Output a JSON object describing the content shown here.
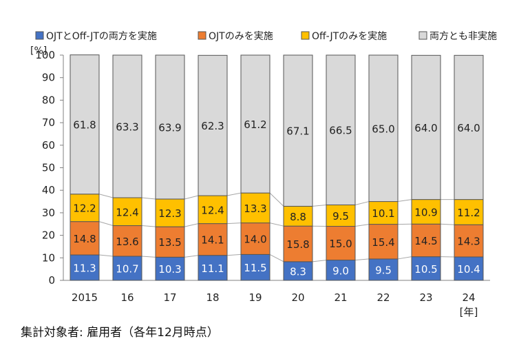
{
  "chart_data": {
    "type": "bar",
    "stacked": true,
    "categories": [
      "2015",
      "16",
      "17",
      "18",
      "19",
      "20",
      "21",
      "22",
      "23",
      "24"
    ],
    "series": [
      {
        "name": "OJTとOff-JTの両方を実施",
        "color": "#4472C4",
        "values": [
          11.3,
          10.7,
          10.3,
          11.1,
          11.5,
          8.3,
          9.0,
          9.5,
          10.5,
          10.4
        ]
      },
      {
        "name": "OJTのみを実施",
        "color": "#ED7D31",
        "values": [
          14.8,
          13.6,
          13.5,
          14.1,
          14.0,
          15.8,
          15.0,
          15.4,
          14.5,
          14.3
        ]
      },
      {
        "name": "Off-JTのみを実施",
        "color": "#FFC000",
        "values": [
          12.2,
          12.4,
          12.3,
          12.4,
          13.3,
          8.8,
          9.5,
          10.1,
          10.9,
          11.2
        ]
      },
      {
        "name": "両方とも非実施",
        "color": "#D9D9D9",
        "values": [
          61.8,
          63.3,
          63.9,
          62.3,
          61.2,
          67.1,
          66.5,
          65.0,
          64.0,
          64.0
        ]
      }
    ],
    "ylabel": "[%]",
    "xunit": "[年]",
    "ylim": [
      0,
      100
    ],
    "yticks": [
      "0",
      "10",
      "20",
      "30",
      "40",
      "50",
      "60",
      "70",
      "80",
      "90",
      "100"
    ],
    "legend_position": "top",
    "grid": false
  },
  "footnote": "集計対象者: 雇用者（各年12月時点）"
}
